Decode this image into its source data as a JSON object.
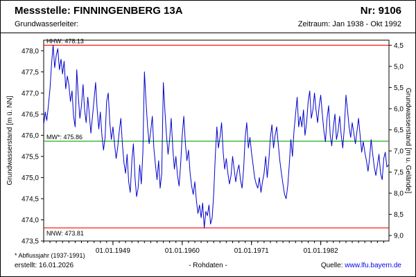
{
  "header": {
    "station": "Messstelle: FINNINGENBERG 13A",
    "number": "Nr: 9106",
    "aquifer": "Grundwasserleiter:",
    "period": "Zeitraum: Jan 1938 - Okt 1992"
  },
  "footer": {
    "note": "* Abflussjahr (1937-1991)",
    "created": "erstellt: 16.01.2026",
    "data_type": "- Rohdaten -",
    "source_label": "Quelle:",
    "source_link": "www.lfu.bayern.de"
  },
  "chart_data": {
    "type": "line",
    "title": "",
    "ylabel_left": "Grundwasserstand [m ü. NN]",
    "ylabel_right": "Grundwasserstand [m u. Gelände]",
    "x_range": [
      1938.0,
      1992.83
    ],
    "y_left_range": [
      473.5,
      478.25
    ],
    "y_left_tick_values": [
      473.5,
      474.0,
      474.5,
      475.0,
      475.5,
      476.0,
      476.5,
      477.0,
      477.5,
      478.0
    ],
    "y_left_tick_labels": [
      "473,5",
      "474,0",
      "474,5",
      "475,0",
      "475,5",
      "476,0",
      "476,5",
      "477,0",
      "477,5",
      "478,0"
    ],
    "y_right_tick_values": [
      4.5,
      5.0,
      5.5,
      6.0,
      6.5,
      7.0,
      7.5,
      8.0,
      8.5,
      9.0
    ],
    "y_right_tick_labels": [
      "4,5",
      "5,0",
      "5,5",
      "6,0",
      "6,5",
      "7,0",
      "7,5",
      "8,0",
      "8,5",
      "9,0"
    ],
    "ground_elevation_m_nn": 482.63,
    "x_tick_values": [
      1949,
      1960,
      1971,
      1982
    ],
    "x_tick_labels": [
      "01.01.1949",
      "01.01.1960",
      "01.01.1971",
      "01.01.1982"
    ],
    "x_minor_tick_step": 1,
    "grid": false,
    "legend": false,
    "reference_lines": [
      {
        "name": "HHW",
        "label": "HHW: 478.13",
        "value": 478.13,
        "color": "#ff0000",
        "label_position": "above"
      },
      {
        "name": "MW",
        "label": "MW*: 475.86",
        "value": 475.86,
        "color": "#00a000",
        "label_position": "above"
      },
      {
        "name": "NNW",
        "label": "NNW: 473.81",
        "value": 473.81,
        "color": "#ff0000",
        "label_position": "below"
      }
    ],
    "series": [
      {
        "name": "Grundwasserstand Rohdaten",
        "color": "#0000cc",
        "x_start": 1938.0,
        "x_step": 0.25,
        "values": [
          476.25,
          476.55,
          476.35,
          476.7,
          477.1,
          477.7,
          478.13,
          477.6,
          477.9,
          478.05,
          477.55,
          477.8,
          477.45,
          477.75,
          477.1,
          477.4,
          477.2,
          476.8,
          477.05,
          476.45,
          476.2,
          477.55,
          476.9,
          476.4,
          476.7,
          477.2,
          476.6,
          476.3,
          476.9,
          476.5,
          476.05,
          476.45,
          476.85,
          477.25,
          476.6,
          476.15,
          476.55,
          476.0,
          475.65,
          475.95,
          476.8,
          477.0,
          476.3,
          475.9,
          476.2,
          475.8,
          475.45,
          475.7,
          476.1,
          476.4,
          475.8,
          475.35,
          475.1,
          475.55,
          474.9,
          474.65,
          475.4,
          475.8,
          475.0,
          474.55,
          474.75,
          475.3,
          474.85,
          475.6,
          477.5,
          476.8,
          476.2,
          475.8,
          476.1,
          476.45,
          475.7,
          475.3,
          474.95,
          475.4,
          474.75,
          475.1,
          477.25,
          476.6,
          476.0,
          475.55,
          475.9,
          476.4,
          475.7,
          475.2,
          475.5,
          475.05,
          474.8,
          475.3,
          476.0,
          476.45,
          475.8,
          475.4,
          475.65,
          475.1,
          474.8,
          474.6,
          474.9,
          474.45,
          474.15,
          474.35,
          474.05,
          474.4,
          473.81,
          474.2,
          474.1,
          474.35,
          473.9,
          474.05,
          474.6,
          475.5,
          476.2,
          475.7,
          475.95,
          476.3,
          475.6,
          475.2,
          475.45,
          475.1,
          474.85,
          475.05,
          475.5,
          475.2,
          474.9,
          475.15,
          475.3,
          474.95,
          474.75,
          475.2,
          475.95,
          476.3,
          475.7,
          475.95,
          475.6,
          475.3,
          475.0,
          474.85,
          474.75,
          475.0,
          474.65,
          474.9,
          475.1,
          475.5,
          475.0,
          475.4,
          475.95,
          476.25,
          475.7,
          476.0,
          476.2,
          475.8,
          475.4,
          475.1,
          474.85,
          474.6,
          474.5,
          474.8,
          475.3,
          475.9,
          475.5,
          476.1,
          476.5,
          476.9,
          476.2,
          476.45,
          476.2,
          476.6,
          476.0,
          476.3,
          476.8,
          477.05,
          476.4,
          476.6,
          477.0,
          476.6,
          476.3,
          476.7,
          476.95,
          476.5,
          476.1,
          475.85,
          476.4,
          476.7,
          476.0,
          475.75,
          476.2,
          476.5,
          475.9,
          476.1,
          476.45,
          476.0,
          475.7,
          476.2,
          476.95,
          476.6,
          476.2,
          475.95,
          476.3,
          476.05,
          475.8,
          476.1,
          476.4,
          476.0,
          475.6,
          475.85,
          475.6,
          475.4,
          475.15,
          475.45,
          475.9,
          475.55,
          475.25,
          475.05,
          475.3,
          475.55,
          475.1,
          474.95,
          475.45,
          475.6,
          475.25,
          475.3
        ]
      }
    ]
  }
}
